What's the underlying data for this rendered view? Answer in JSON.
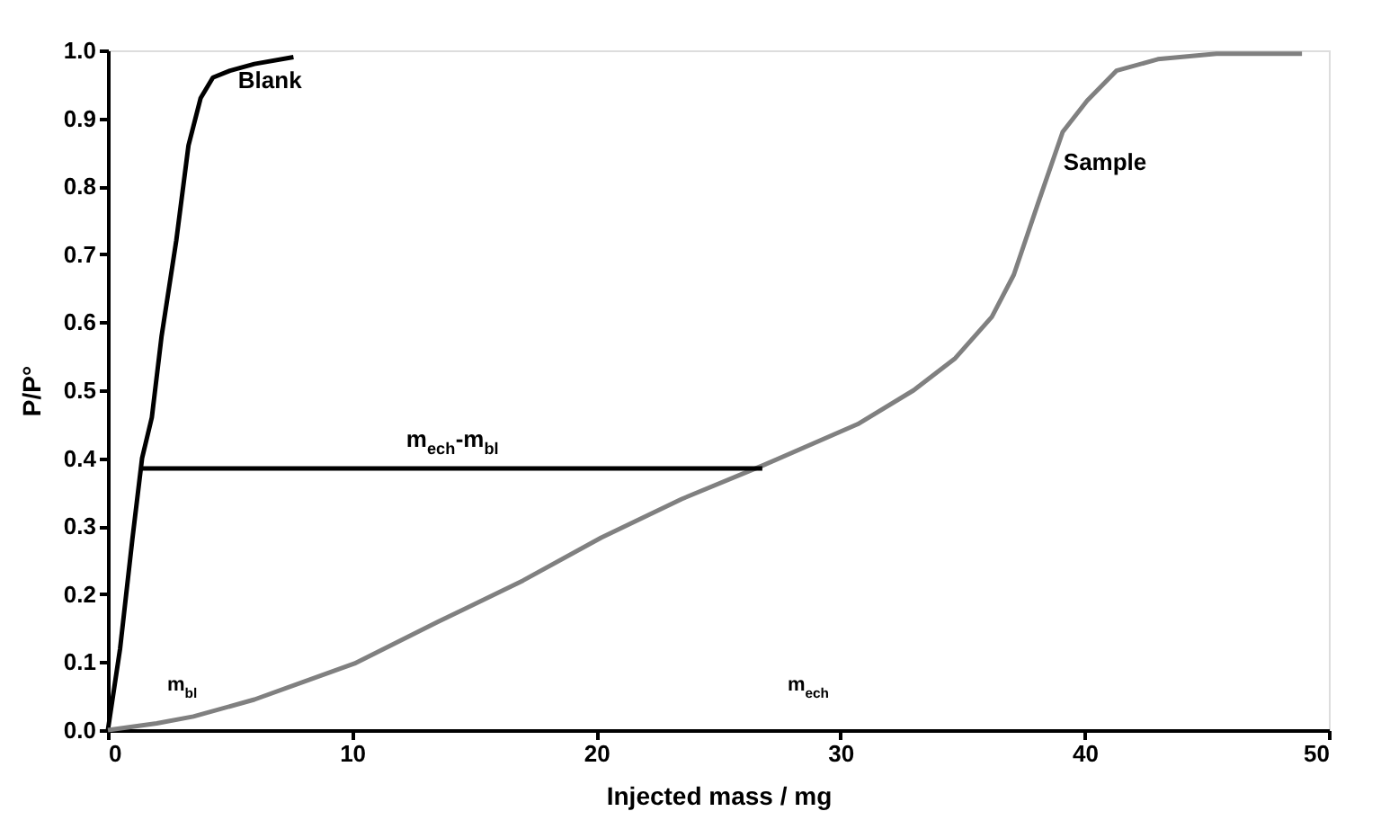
{
  "chart_data": {
    "type": "line",
    "xlabel": "Injected mass / mg",
    "ylabel": "P/P°",
    "xlim": [
      0,
      50
    ],
    "xticks": [
      0,
      10,
      20,
      30,
      40,
      50
    ],
    "ylim": [
      0,
      1
    ],
    "yticks": [
      {
        "value": 0,
        "label": "0.0"
      },
      {
        "value": 0.1,
        "label": "0.1"
      },
      {
        "value": 0.2,
        "label": "0.2"
      },
      {
        "value": 0.3,
        "label": "0.3"
      },
      {
        "value": 0.4,
        "label": "0.4"
      },
      {
        "value": 0.5,
        "label": "0.5"
      },
      {
        "value": 0.6,
        "label": "0.6"
      },
      {
        "value": 0.7,
        "label": "0.7"
      },
      {
        "value": 0.8,
        "label": "0.8"
      },
      {
        "value": 0.9,
        "label": "0.9"
      },
      {
        "value": 1,
        "label": "1.0"
      }
    ],
    "grid": false,
    "legend": false,
    "line_style": "solid",
    "marker": "none",
    "series": [
      {
        "name": "Blank",
        "color": "#000000",
        "x": [
          0,
          0.5,
          1.0,
          1.4,
          1.8,
          2.2,
          2.8,
          3.3,
          3.8,
          4.3,
          5,
          6,
          7.6
        ],
        "values": [
          0,
          0.12,
          0.28,
          0.4,
          0.46,
          0.58,
          0.72,
          0.86,
          0.93,
          0.96,
          0.97,
          0.98,
          0.99
        ]
      },
      {
        "name": "Sample",
        "color": "#808080",
        "x": [
          0,
          2,
          3.5,
          6,
          10.1,
          13.5,
          17,
          20.2,
          23.5,
          26.8,
          30.7,
          33,
          34.7,
          36.2,
          37.1,
          38.1,
          39.1,
          40.1,
          41.3,
          43,
          45.4,
          48.9
        ],
        "values": [
          0,
          0.01,
          0.02,
          0.045,
          0.098,
          0.159,
          0.22,
          0.283,
          0.34,
          0.389,
          0.45,
          0.5,
          0.547,
          0.608,
          0.67,
          0.776,
          0.88,
          0.926,
          0.97,
          0.987,
          0.995,
          0.995
        ]
      },
      {
        "name": "m$_{ech}$-m$_{bl}$",
        "color": "#000000",
        "x": [
          1.4,
          26.8
        ],
        "values": [
          0.385,
          0.385
        ]
      }
    ],
    "annotations": [
      "m$_{bl}$",
      "m$_{ech}$"
    ]
  }
}
